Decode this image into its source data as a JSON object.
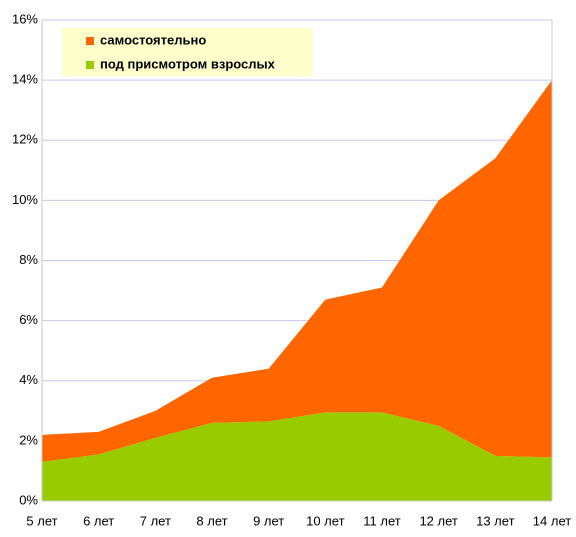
{
  "chart_data": {
    "type": "area",
    "stacked": true,
    "categories": [
      "5 лет",
      "6 лет",
      "7 лет",
      "8 лет",
      "9 лет",
      "10 лет",
      "11 лет",
      "12 лет",
      "13 лет",
      "14 лет"
    ],
    "series": [
      {
        "name": "самостоятельно",
        "color": "#ff6600",
        "values": [
          0.9,
          0.75,
          0.9,
          1.5,
          1.75,
          3.75,
          4.15,
          7.5,
          9.9,
          12.55
        ]
      },
      {
        "name": "под присмотром взрослых",
        "color": "#99cc00",
        "values": [
          1.3,
          1.55,
          2.1,
          2.6,
          2.65,
          2.95,
          2.95,
          2.5,
          1.5,
          1.45
        ]
      }
    ],
    "ylim": [
      0,
      16
    ],
    "yticks": [
      {
        "value": 0,
        "label": "0%"
      },
      {
        "value": 2,
        "label": "2%"
      },
      {
        "value": 4,
        "label": "4%"
      },
      {
        "value": 6,
        "label": "6%"
      },
      {
        "value": 8,
        "label": "8%"
      },
      {
        "value": 10,
        "label": "10%"
      },
      {
        "value": 12,
        "label": "12%"
      },
      {
        "value": 14,
        "label": "14%"
      },
      {
        "value": 16,
        "label": "16%"
      }
    ],
    "grid": true
  }
}
